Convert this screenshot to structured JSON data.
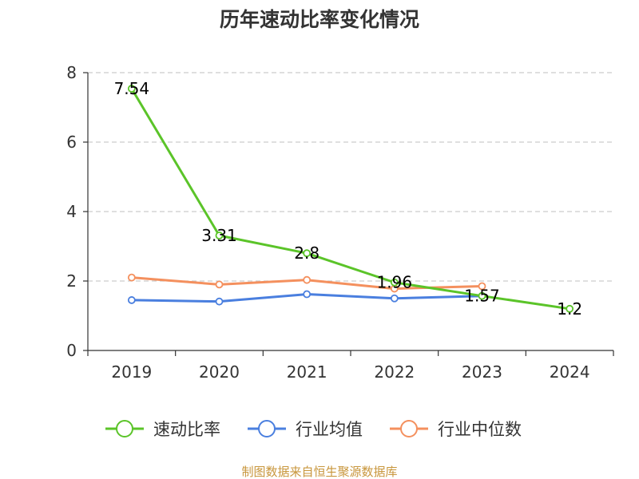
{
  "chart_data": {
    "type": "line",
    "title": "历年速动比率变化情况",
    "xlabel": "",
    "ylabel": "",
    "categories": [
      "2019",
      "2020",
      "2021",
      "2022",
      "2023",
      "2024"
    ],
    "ylim": [
      0,
      8
    ],
    "yticks": [
      "0",
      "2",
      "4",
      "6",
      "8"
    ],
    "grid": true,
    "legend_position": "bottom",
    "series": [
      {
        "name": "速动比率",
        "color": "#5bc429",
        "values": [
          7.54,
          3.31,
          2.8,
          1.96,
          1.57,
          1.2
        ],
        "labels": [
          "7.54",
          "3.31",
          "2.8",
          "1.96",
          "1.57",
          "1.2"
        ]
      },
      {
        "name": "行业均值",
        "color": "#4a7fdf",
        "values": [
          1.45,
          1.41,
          1.62,
          1.5,
          1.57,
          null
        ]
      },
      {
        "name": "行业中位数",
        "color": "#f4905e",
        "values": [
          2.1,
          1.9,
          2.03,
          1.78,
          1.85,
          null
        ]
      }
    ]
  },
  "footer": {
    "source": "制图数据来自恒生聚源数据库"
  }
}
